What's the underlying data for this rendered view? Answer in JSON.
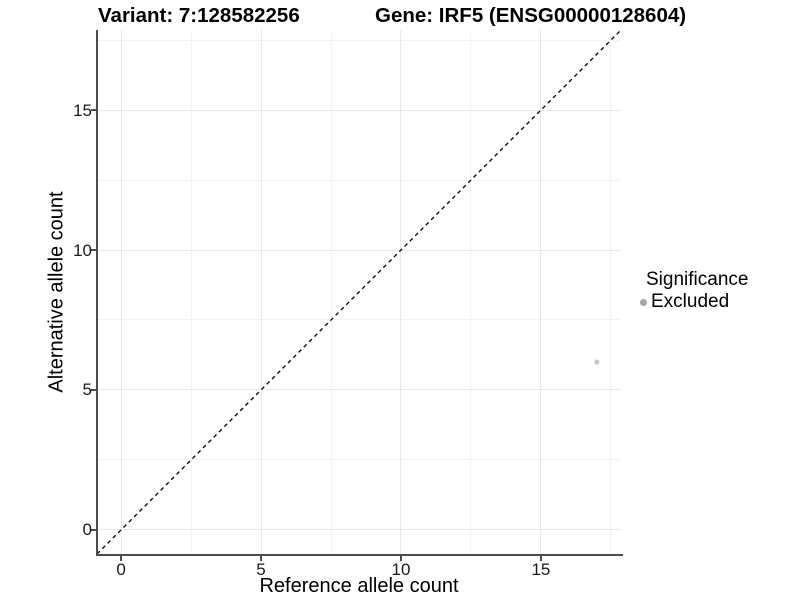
{
  "titles": {
    "variant": "Variant: 7:128582256",
    "gene": "Gene: IRF5 (ENSG00000128604)"
  },
  "axes": {
    "x": {
      "label": "Reference allele count"
    },
    "y": {
      "label": "Alternative allele count"
    }
  },
  "legend": {
    "title": "Significance",
    "items": [
      {
        "label": "Excluded",
        "color": "#a6a6a6"
      }
    ]
  },
  "colors": {
    "grid_major": "#e8e8e8",
    "grid_minor": "#f3f3f3",
    "axis_line": "#4d4d4d",
    "point": "#c6c6c6",
    "reference_line": "#000000"
  },
  "chart_data": {
    "type": "scatter",
    "title": "Variant: 7:128582256 | Gene: IRF5 (ENSG00000128604)",
    "xlabel": "Reference allele count",
    "ylabel": "Alternative allele count",
    "xlim": [
      -0.86,
      17.86
    ],
    "ylim": [
      -0.86,
      17.86
    ],
    "x_ticks": [
      0,
      5,
      10,
      15
    ],
    "y_ticks": [
      0,
      5,
      10,
      15
    ],
    "x_minor_ticks": [
      2.5,
      7.5,
      12.5,
      17.5
    ],
    "y_minor_ticks": [
      2.5,
      7.5,
      12.5,
      17.5
    ],
    "grid": "major+minor",
    "legend_position": "right",
    "reference_line": {
      "type": "identity y=x",
      "style": "dashed",
      "color": "#000000"
    },
    "series": [
      {
        "name": "Excluded",
        "color": "#c6c6c6",
        "points": [
          {
            "x": 17,
            "y": 6
          }
        ]
      }
    ]
  }
}
